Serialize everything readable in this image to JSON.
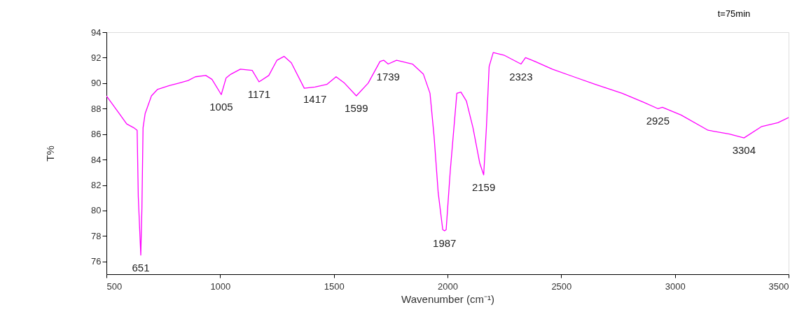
{
  "chart_data": {
    "type": "line",
    "xlabel": "Wavenumber (cm⁻¹)",
    "ylabel": "T%",
    "xlim": [
      500,
      3500
    ],
    "xticks": [
      500,
      1000,
      1500,
      2000,
      2500,
      3000,
      3500
    ],
    "ylim": [
      75,
      94
    ],
    "yticks": [
      76,
      78,
      80,
      82,
      84,
      86,
      88,
      90,
      92,
      94
    ],
    "grid": false,
    "marker": "none",
    "line_style": "solid",
    "series": [
      {
        "color": "#ff00ff",
        "x": [
          500,
          557,
          589,
          620,
          635,
          640,
          651,
          656,
          661,
          670,
          698,
          724,
          776,
          818,
          859,
          891,
          937,
          964,
          1005,
          1026,
          1047,
          1089,
          1141,
          1171,
          1214,
          1250,
          1281,
          1313,
          1370,
          1417,
          1469,
          1510,
          1547,
          1599,
          1651,
          1703,
          1719,
          1739,
          1776,
          1846,
          1894,
          1923,
          1941,
          1959,
          1979,
          1987,
          1994,
          2012,
          2041,
          2059,
          2083,
          2112,
          2142,
          2159,
          2171,
          2183,
          2201,
          2248,
          2323,
          2343,
          2372,
          2461,
          2555,
          2650,
          2768,
          2862,
          2925,
          2945,
          3027,
          3146,
          3240,
          3304,
          3382,
          3453,
          3500
        ],
        "values": [
          89.0,
          87.6,
          86.8,
          86.5,
          86.3,
          81.1,
          76.5,
          80.2,
          86.5,
          87.6,
          89.0,
          89.5,
          89.8,
          90.0,
          90.2,
          90.5,
          90.6,
          90.3,
          89.1,
          90.4,
          90.7,
          91.1,
          91.0,
          90.1,
          90.6,
          91.8,
          92.1,
          91.6,
          89.6,
          89.7,
          89.9,
          90.5,
          90.0,
          89.0,
          90.0,
          91.7,
          91.8,
          91.5,
          91.8,
          91.5,
          90.7,
          89.2,
          85.8,
          81.4,
          78.5,
          78.4,
          78.5,
          83.1,
          89.2,
          89.3,
          88.6,
          86.5,
          83.7,
          82.8,
          86.5,
          91.3,
          92.4,
          92.2,
          91.5,
          92.0,
          91.8,
          91.1,
          90.5,
          89.9,
          89.2,
          88.5,
          88.0,
          88.1,
          87.5,
          86.3,
          86.0,
          85.7,
          86.6,
          86.9,
          87.3
        ]
      }
    ],
    "annotations": [
      {
        "text": "651",
        "x": 651,
        "y": 76.5
      },
      {
        "text": "1005",
        "x": 1005,
        "y": 89.1
      },
      {
        "text": "1171",
        "x": 1171,
        "y": 90.1
      },
      {
        "text": "1417",
        "x": 1417,
        "y": 89.7
      },
      {
        "text": "1599",
        "x": 1599,
        "y": 89.0
      },
      {
        "text": "1739",
        "x": 1739,
        "y": 91.5
      },
      {
        "text": "1987",
        "x": 1987,
        "y": 78.4
      },
      {
        "text": "2159",
        "x": 2159,
        "y": 82.8
      },
      {
        "text": "2323",
        "x": 2323,
        "y": 91.5
      },
      {
        "text": "2925",
        "x": 2925,
        "y": 88.0
      },
      {
        "text": "3304",
        "x": 3304,
        "y": 85.7
      },
      "t=75min"
    ]
  }
}
